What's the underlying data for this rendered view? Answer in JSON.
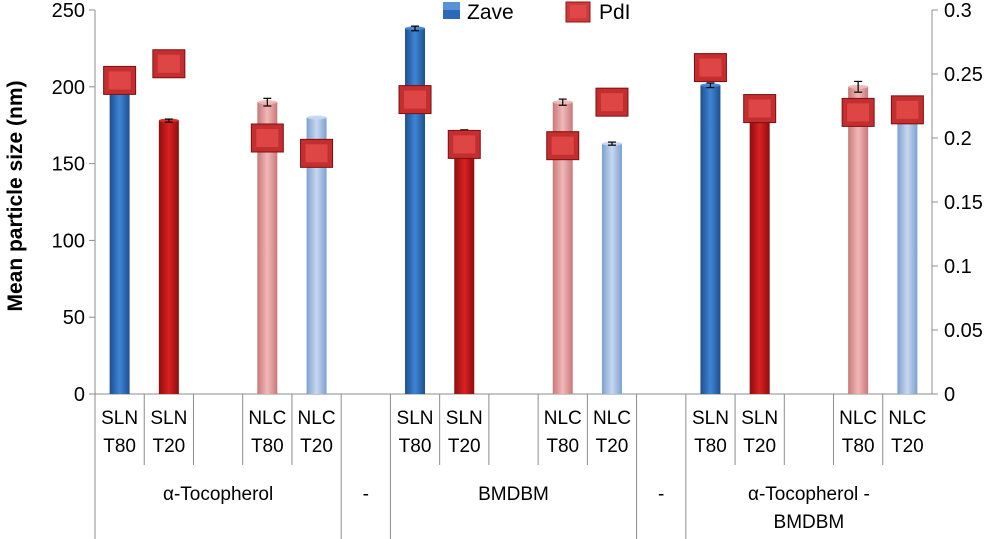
{
  "chart_data": {
    "type": "bar",
    "ylabel": "Mean particle size (nm)",
    "ylim": [
      0,
      250
    ],
    "y2lim": [
      0,
      0.3
    ],
    "yticks": [
      "0",
      "50",
      "100",
      "150",
      "200",
      "250"
    ],
    "y2ticks": [
      "0",
      "0.05",
      "0.1",
      "0.15",
      "0.2",
      "0.25",
      "0.3"
    ],
    "legend": {
      "placement": "top-center",
      "zave": "Zave",
      "pdi": "PdI"
    },
    "colors": {
      "SLN T80": "#2a6ab8",
      "SLN T20": "#c81818",
      "NLC T80": "#e39a9a",
      "NLC T20": "#a3bfe4",
      "pdi_marker": "#d03a3a"
    },
    "categories": [
      {
        "l1": "SLN",
        "l2": "T80",
        "type": "SLN T80",
        "zave": 197,
        "err": 0,
        "pdi": 0.245
      },
      {
        "l1": "SLN",
        "l2": "T20",
        "type": "SLN T20",
        "zave": 178,
        "err": 1,
        "pdi": 0.258
      },
      {
        "l1": "",
        "l2": "",
        "type": null,
        "zave": null,
        "err": 0,
        "pdi": null
      },
      {
        "l1": "NLC",
        "l2": "T80",
        "type": "NLC T80",
        "zave": 190,
        "err": 2.5,
        "pdi": 0.2
      },
      {
        "l1": "NLC",
        "l2": "T20",
        "type": "NLC T20",
        "zave": 180,
        "err": 0,
        "pdi": 0.188
      },
      {
        "l1": "",
        "l2": "",
        "type": null,
        "zave": null,
        "err": 0,
        "pdi": null
      },
      {
        "l1": "SLN",
        "l2": "T80",
        "type": "SLN T80",
        "zave": 238,
        "err": 1.5,
        "pdi": 0.23
      },
      {
        "l1": "SLN",
        "l2": "T20",
        "type": "SLN T20",
        "zave": 170,
        "err": 2,
        "pdi": 0.195
      },
      {
        "l1": "",
        "l2": "",
        "type": null,
        "zave": null,
        "err": 0,
        "pdi": null
      },
      {
        "l1": "NLC",
        "l2": "T80",
        "type": "NLC T80",
        "zave": 190,
        "err": 2,
        "pdi": 0.194
      },
      {
        "l1": "NLC",
        "l2": "T20",
        "type": "NLC T20",
        "zave": 163,
        "err": 1,
        "pdi": 0.228
      },
      {
        "l1": "",
        "l2": "",
        "type": null,
        "zave": null,
        "err": 0,
        "pdi": null
      },
      {
        "l1": "SLN",
        "l2": "T80",
        "type": "SLN T80",
        "zave": 201,
        "err": 1.5,
        "pdi": 0.255
      },
      {
        "l1": "SLN",
        "l2": "T20",
        "type": "SLN T20",
        "zave": 185,
        "err": 0,
        "pdi": 0.223
      },
      {
        "l1": "",
        "l2": "",
        "type": null,
        "zave": null,
        "err": 0,
        "pdi": null
      },
      {
        "l1": "NLC",
        "l2": "T80",
        "type": "NLC T80",
        "zave": 200,
        "err": 3.5,
        "pdi": 0.22
      },
      {
        "l1": "NLC",
        "l2": "T20",
        "type": "NLC T20",
        "zave": 180,
        "err": 0,
        "pdi": 0.222
      }
    ],
    "groups": [
      {
        "lines": [
          "α-Tocopherol"
        ],
        "start": 0,
        "end": 4
      },
      {
        "lines": [
          "-"
        ],
        "start": 5,
        "end": 5
      },
      {
        "lines": [
          "BMDBM"
        ],
        "start": 6,
        "end": 10
      },
      {
        "lines": [
          "-"
        ],
        "start": 11,
        "end": 11
      },
      {
        "lines": [
          "α-Tocopherol -",
          "BMDBM"
        ],
        "start": 12,
        "end": 16
      }
    ]
  }
}
